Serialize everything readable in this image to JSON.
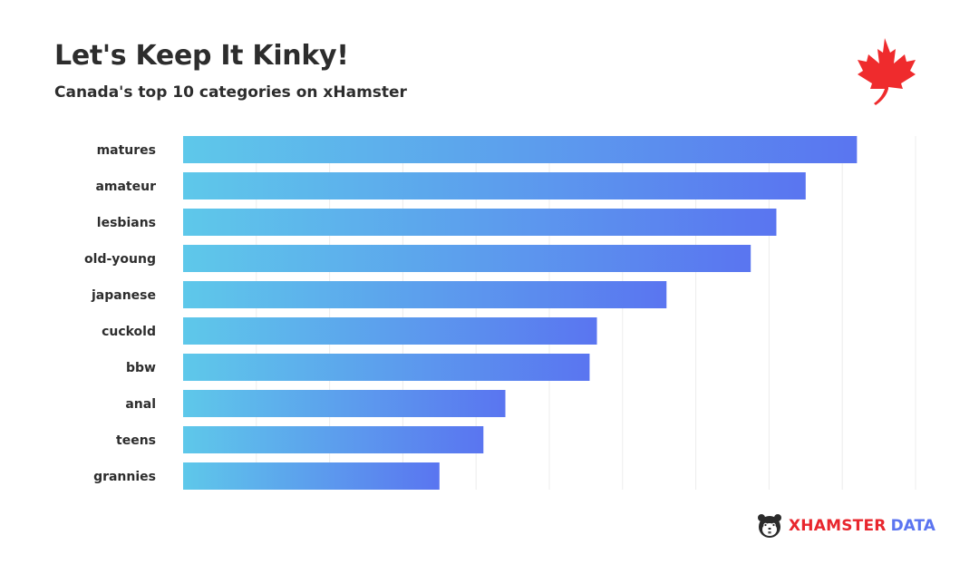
{
  "header": {
    "title": "Let's Keep It Kinky!",
    "subtitle": "Canada's top 10 categories on xHamster"
  },
  "icons": {
    "flag": "maple-leaf-icon",
    "brand": "hamster-logo-icon"
  },
  "footer": {
    "brand_main": "XHAMSTER",
    "brand_data": "DATA"
  },
  "colors": {
    "bar_start": "#5ec8ea",
    "bar_end": "#5a75f0",
    "maple": "#ef2b2d",
    "text": "#2d2d2d",
    "grid": "#ececec"
  },
  "chart_data": {
    "type": "bar",
    "orientation": "horizontal",
    "categories": [
      "matures",
      "amateur",
      "lesbians",
      "old-young",
      "japanese",
      "cuckold",
      "bbw",
      "anal",
      "teens",
      "grannies"
    ],
    "values": [
      92,
      85,
      81,
      77.5,
      66,
      56.5,
      55.5,
      44,
      41,
      35
    ],
    "xlim": [
      0,
      100
    ],
    "grid": true,
    "legend": "none",
    "xlabel": "",
    "ylabel": ""
  }
}
